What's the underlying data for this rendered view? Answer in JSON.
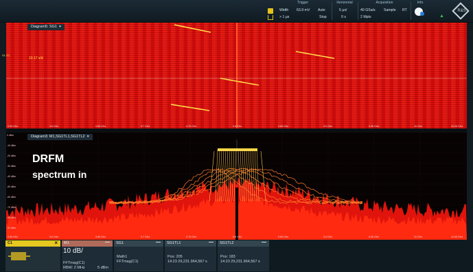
{
  "topbar": {
    "trigger": {
      "title": "Trigger",
      "width_label": "Width",
      "width_value": "63.9 mV",
      "mode": "Auto",
      "cond": "> 1 µs",
      "state": "Stop"
    },
    "horizontal": {
      "title": "Horizontal",
      "scale": "5 µs/",
      "pos": "0 s"
    },
    "acquisition": {
      "title": "Acquisition",
      "rate": "40 GSa/s",
      "mode": "Sample",
      "rt": "RT",
      "points": "2 Mpts"
    },
    "info": {
      "title": "Info"
    },
    "logo_text": "R&S"
  },
  "diagram_top": {
    "tab_label": "Diagram5: SG1",
    "close": "×",
    "cursor_label": "10.17 s/d",
    "trace_label": "S1\nG1",
    "x_ticks": [
      "9.55 GHz",
      "9.6 GHz",
      "9.65 GHz",
      "9.7 GHz",
      "9.75 GHz",
      "9.8 GHz",
      "9.85 GHz",
      "9.9 GHz",
      "9.95 GHz",
      "10 GHz",
      "10.05 GHz"
    ]
  },
  "diagram_bot": {
    "tab_label": "Diagram3: M1,SG1TL1,SG1TL2",
    "close": "×",
    "y_ticks": [
      "0 dBm",
      "-10 dBm",
      "-20 dBm",
      "-30 dBm",
      "-40 dBm",
      "-50 dBm",
      "-60 dBm",
      "-70 dBm",
      "-80 dBm",
      "-90 dBm"
    ],
    "x_ticks": [
      "9.55 GHz",
      "9.6 GHz",
      "9.65 GHz",
      "9.7 GHz",
      "9.75 GHz",
      "9.8 GHz",
      "9.85 GHz",
      "9.9 GHz",
      "9.95 GHz",
      "10 GHz",
      "10.05 GHz"
    ]
  },
  "overlay": {
    "line1": "DRFM",
    "line2": "spectrum in"
  },
  "bottom": {
    "c1": {
      "label": "C1",
      "close": "×"
    },
    "m1": {
      "label": "M1",
      "scale": "10 dB/",
      "func": "FFTmag(C1)",
      "rbw": "RBW: 2 MHz",
      "ref": "5 dBm"
    },
    "sg1": {
      "label": "SG1",
      "l1": "Math1",
      "l2": "FFTmag(C1)"
    },
    "sg1tl1": {
      "label": "SG1TL1",
      "pos": "Pos: 205",
      "time": "14:23 29,231.964,567 s"
    },
    "sg1tl2": {
      "label": "SG1TL2",
      "pos": "Pos: 183",
      "time": "14:23 29,231.964,567 s"
    }
  },
  "colors": {
    "spectrogram": "#d40c0c",
    "trace": "#ff3a1a",
    "highlight": "#ffe04a",
    "channel1": "#e6c81e"
  }
}
